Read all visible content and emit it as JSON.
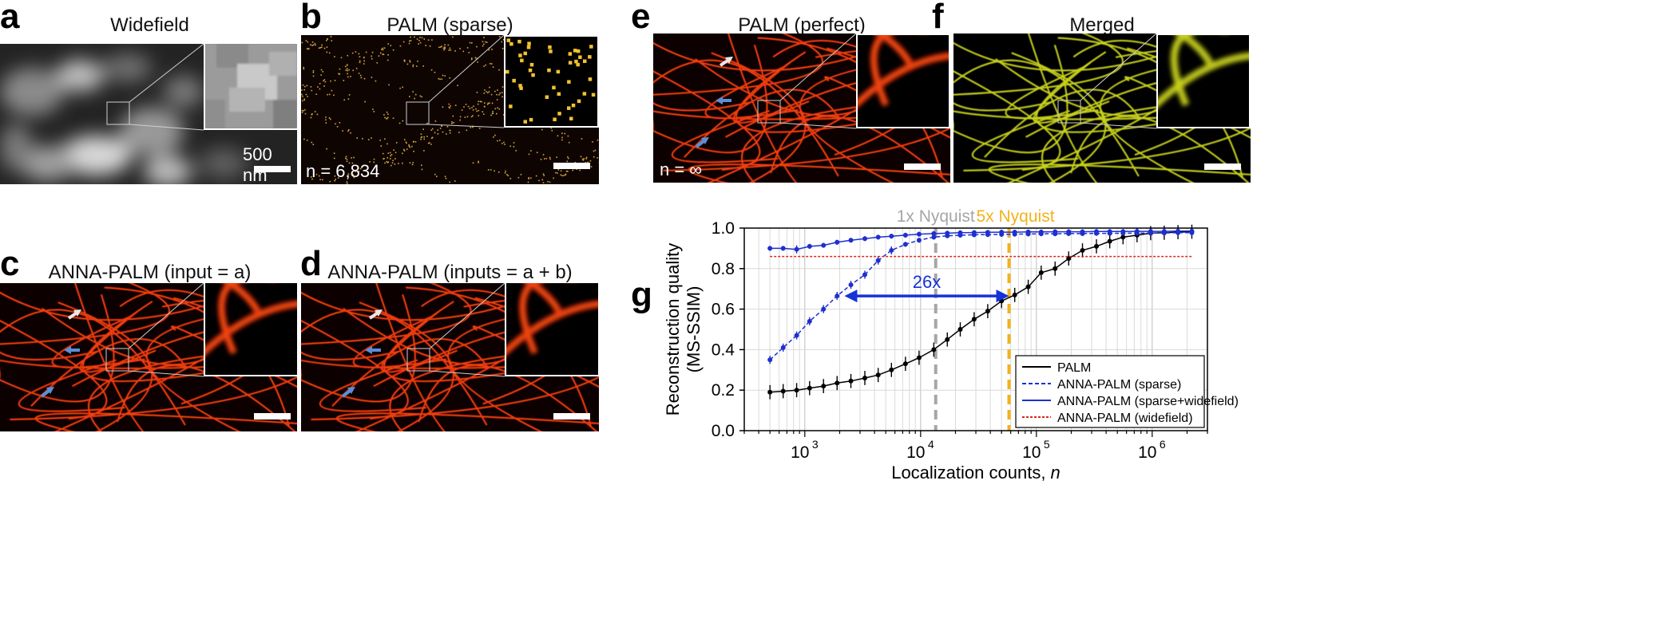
{
  "panels": {
    "a": {
      "letter": "a",
      "title": "Widefield",
      "scalebar_label": "500 nm"
    },
    "b": {
      "letter": "b",
      "title": "PALM (sparse)",
      "n_label": "n = 6,834"
    },
    "c": {
      "letter": "c",
      "title": "ANNA-PALM (input = a)"
    },
    "d": {
      "letter": "d",
      "title": "ANNA-PALM (inputs = a + b)"
    },
    "e": {
      "letter": "e",
      "title": "PALM (perfect)",
      "n_label": "n = ∞"
    },
    "f": {
      "letter": "f",
      "title": "Merged"
    },
    "g": {
      "letter": "g"
    }
  },
  "colors": {
    "palm": "#000000",
    "anna_sparse": "#1f2fd0",
    "anna_sparse_widefield": "#1f2fd0",
    "anna_widefield": "#d62a1e",
    "nyquist1": "#a6a6a6",
    "nyquist5": "#f2b21c",
    "arrow_26x": "#1433d6"
  },
  "chart_data": {
    "type": "line",
    "xlabel": "Localization counts, n",
    "ylabel": "Reconstruction quality (MS-SSIM)",
    "ylabel_lines": [
      "Reconstruction quality",
      "(MS-SSIM)"
    ],
    "xscale": "log",
    "xlim": [
      300,
      3000000
    ],
    "ylim": [
      0.0,
      1.0
    ],
    "yticks": [
      "0.0",
      "0.2",
      "0.4",
      "0.6",
      "0.8",
      "1.0"
    ],
    "xticks": [
      {
        "value": 1000,
        "label": "10",
        "exp": "3"
      },
      {
        "value": 10000,
        "label": "10",
        "exp": "4"
      },
      {
        "value": 100000,
        "label": "10",
        "exp": "5"
      },
      {
        "value": 1000000,
        "label": "10",
        "exp": "6"
      }
    ],
    "grid": true,
    "legend_position": "bottom-right",
    "annotations": {
      "nyquist1": {
        "label": "1x Nyquist",
        "x": 13500
      },
      "nyquist5": {
        "label": "5x Nyquist",
        "x": 58000
      },
      "gain": {
        "label": "26x",
        "x_from": 2200,
        "x_to": 58000,
        "y": 0.665
      }
    },
    "series": [
      {
        "name": "PALM",
        "style": "solid",
        "x": [
          500,
          650,
          850,
          1100,
          1450,
          1900,
          2500,
          3300,
          4300,
          5600,
          7400,
          9700,
          13000,
          17000,
          22000,
          29000,
          38000,
          50000,
          65000,
          85000,
          110000,
          145000,
          190000,
          250000,
          330000,
          430000,
          560000,
          740000,
          970000,
          1270000,
          1670000,
          2200000
        ],
        "values": [
          0.19,
          0.195,
          0.2,
          0.21,
          0.22,
          0.235,
          0.245,
          0.26,
          0.275,
          0.3,
          0.33,
          0.36,
          0.4,
          0.45,
          0.5,
          0.55,
          0.59,
          0.64,
          0.67,
          0.71,
          0.78,
          0.8,
          0.85,
          0.89,
          0.91,
          0.935,
          0.955,
          0.965,
          0.975,
          0.977,
          0.98,
          0.982
        ]
      },
      {
        "name": "ANNA-PALM (sparse)",
        "style": "dashed",
        "x": [
          500,
          650,
          850,
          1100,
          1450,
          1900,
          2500,
          3300,
          4300,
          5600,
          7400,
          9700,
          13000,
          17000,
          22000,
          29000,
          38000,
          50000,
          65000,
          85000,
          110000,
          145000,
          190000,
          250000,
          330000,
          430000,
          560000,
          740000,
          970000,
          1270000,
          1670000,
          2200000
        ],
        "values": [
          0.35,
          0.41,
          0.47,
          0.54,
          0.6,
          0.665,
          0.72,
          0.77,
          0.84,
          0.89,
          0.92,
          0.94,
          0.955,
          0.962,
          0.965,
          0.967,
          0.968,
          0.969,
          0.97,
          0.971,
          0.972,
          0.972,
          0.973,
          0.973,
          0.974,
          0.974,
          0.975,
          0.975,
          0.976,
          0.976,
          0.977,
          0.977
        ]
      },
      {
        "name": "ANNA-PALM (sparse+widefield)",
        "style": "solid",
        "x": [
          500,
          650,
          850,
          1100,
          1450,
          1900,
          2500,
          3300,
          4300,
          5600,
          7400,
          9700,
          13000,
          17000,
          22000,
          29000,
          38000,
          50000,
          65000,
          85000,
          110000,
          145000,
          190000,
          250000,
          330000,
          430000,
          560000,
          740000,
          970000,
          1270000,
          1670000,
          2200000
        ],
        "values": [
          0.9,
          0.9,
          0.895,
          0.91,
          0.915,
          0.93,
          0.94,
          0.948,
          0.955,
          0.96,
          0.965,
          0.97,
          0.973,
          0.975,
          0.977,
          0.978,
          0.979,
          0.98,
          0.98,
          0.981,
          0.981,
          0.982,
          0.982,
          0.982,
          0.983,
          0.983,
          0.983,
          0.984,
          0.984,
          0.984,
          0.985,
          0.985
        ]
      },
      {
        "name": "ANNA-PALM (widefield)",
        "style": "dotted",
        "x": [
          500,
          2200000
        ],
        "values": [
          0.86,
          0.86
        ]
      }
    ]
  }
}
